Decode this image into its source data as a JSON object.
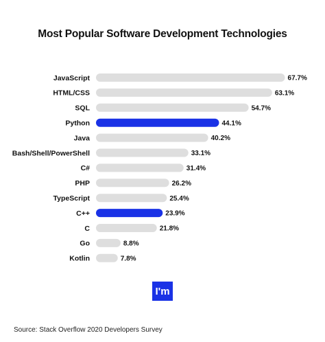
{
  "chart_data": {
    "type": "bar",
    "orientation": "horizontal",
    "title": "Most Popular Software Development Technologies",
    "categories": [
      "JavaScript",
      "HTML/CSS",
      "SQL",
      "Python",
      "Java",
      "Bash/Shell/PowerShell",
      "C#",
      "PHP",
      "TypeScript",
      "C++",
      "C",
      "Go",
      "Kotlin"
    ],
    "values": [
      67.7,
      63.1,
      54.7,
      44.1,
      40.2,
      33.1,
      31.4,
      26.2,
      25.4,
      23.9,
      21.8,
      8.8,
      7.8
    ],
    "value_labels": [
      "67.7%",
      "63.1%",
      "54.7%",
      "44.1%",
      "40.2%",
      "33.1%",
      "31.4%",
      "26.2%",
      "25.4%",
      "23.9%",
      "21.8%",
      "8.8%",
      "7.8%"
    ],
    "highlighted": [
      "Python",
      "C++"
    ],
    "xlim": [
      0,
      100
    ],
    "grid": false,
    "colors": {
      "default_bar": "#dedede",
      "highlight_bar": "#1a32e6"
    }
  },
  "logo_text": "I'm",
  "source": "Source: Stack Overflow 2020 Developers Survey"
}
